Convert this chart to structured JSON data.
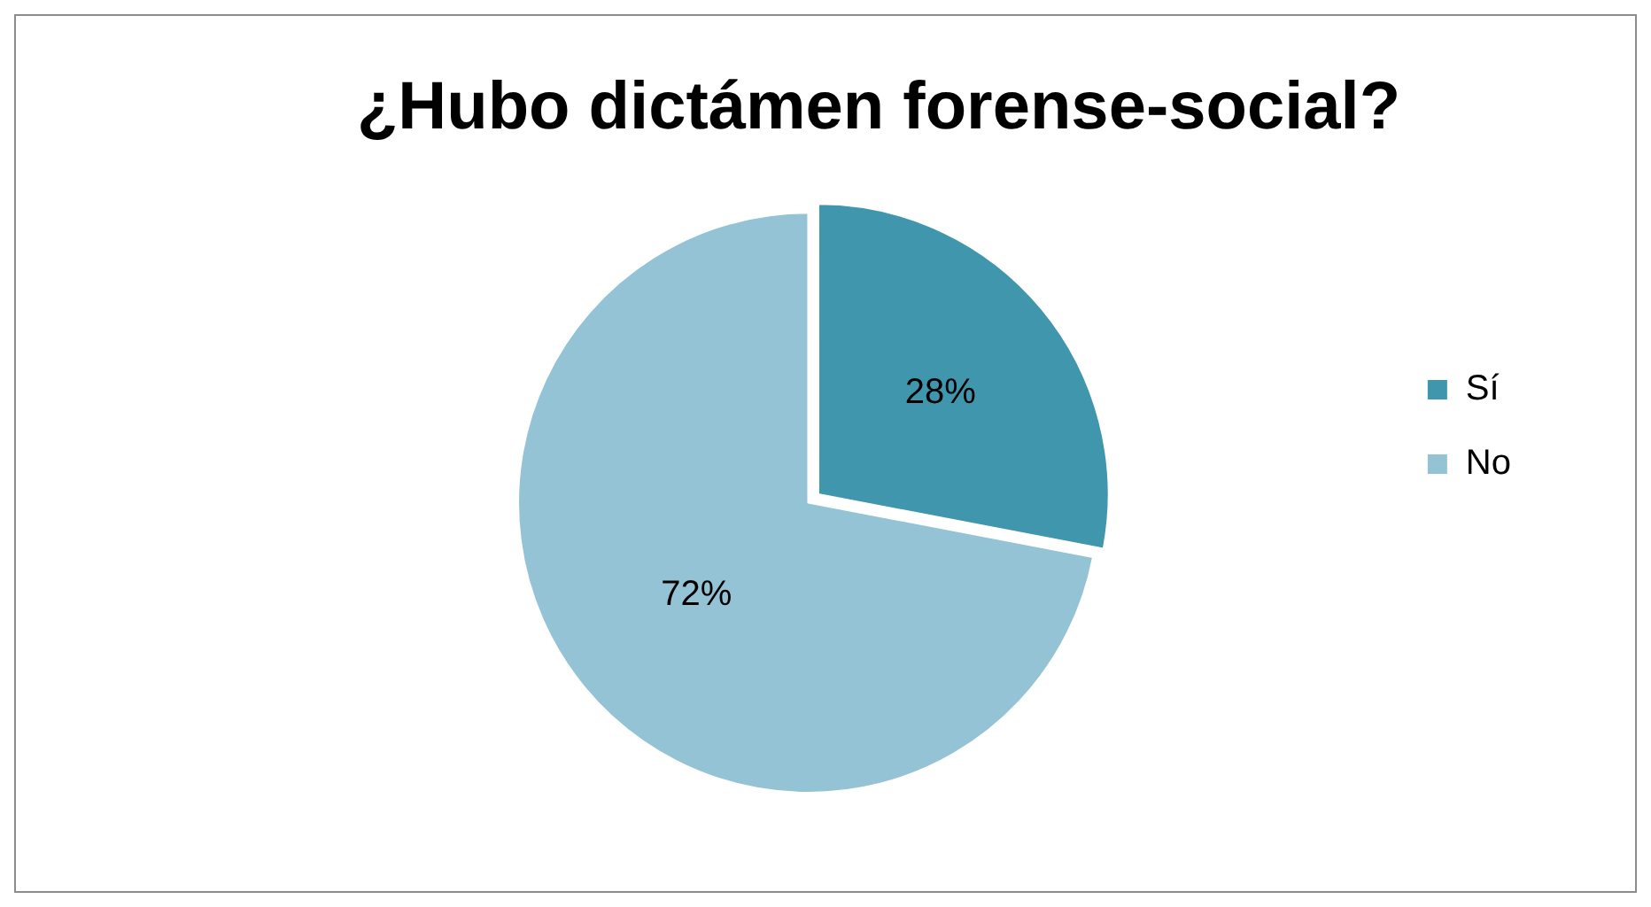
{
  "chart_data": {
    "type": "pie",
    "title": "¿Hubo dictámen forense-social?",
    "categories": [
      "Sí",
      "No"
    ],
    "values": [
      28,
      72
    ],
    "value_labels": [
      "28%",
      "72%"
    ],
    "colors": [
      "#3f96ad",
      "#93c3d5"
    ],
    "legend": "right"
  }
}
